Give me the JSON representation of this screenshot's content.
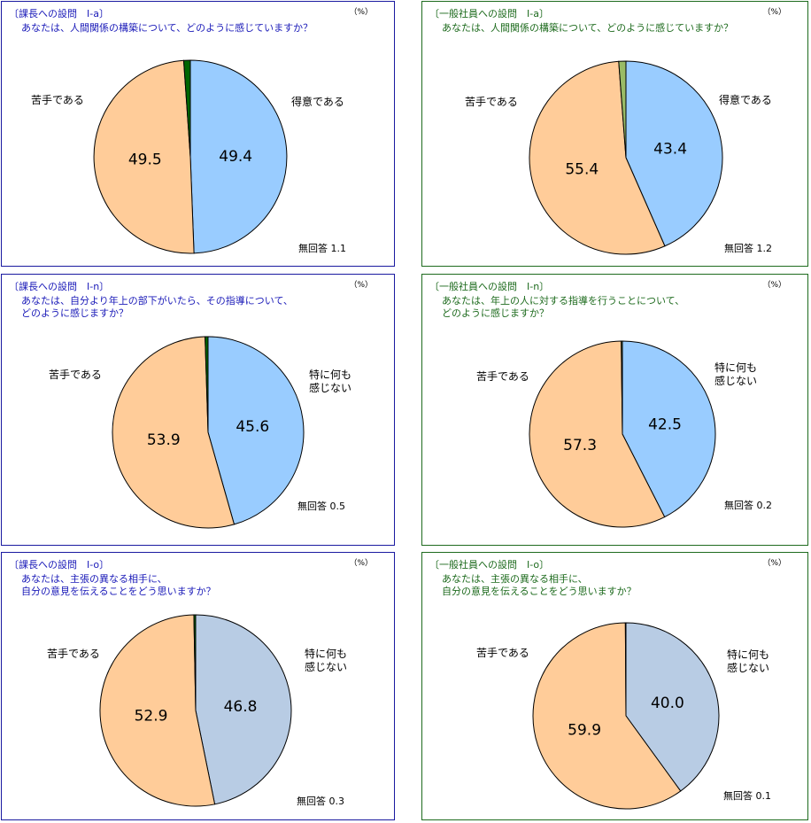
{
  "chart_data": [
    {
      "type": "pie",
      "title": "〔課長への設問　Ⅰ-a〕",
      "unit": "（%）",
      "question": [
        "あなたは、人間関係の構築について、どのように感じていますか？"
      ],
      "series": [
        {
          "name": "得意である",
          "value": 49.4,
          "color": "#99ccff"
        },
        {
          "name": "苦手である",
          "value": 49.5,
          "color": "#ffcc99"
        },
        {
          "name": "無回答",
          "value": 1.1,
          "color": "#006600"
        }
      ],
      "labels": {
        "first": [
          "得意である"
        ],
        "second": [
          "苦手である"
        ],
        "noanswer": "無回答 1.1"
      },
      "value_labels": [
        "49.4",
        "49.5"
      ]
    },
    {
      "type": "pie",
      "title": "〔一般社員への設問　Ⅰ-a〕",
      "unit": "（%）",
      "question": [
        "あなたは、人間関係の構築について、どのように感じていますか？"
      ],
      "series": [
        {
          "name": "得意である",
          "value": 43.4,
          "color": "#99ccff"
        },
        {
          "name": "苦手である",
          "value": 55.4,
          "color": "#ffcc99"
        },
        {
          "name": "無回答",
          "value": 1.2,
          "color": "#99bb66"
        }
      ],
      "labels": {
        "first": [
          "得意である"
        ],
        "second": [
          "苦手である"
        ],
        "noanswer": "無回答 1.2"
      },
      "value_labels": [
        "43.4",
        "55.4"
      ]
    },
    {
      "type": "pie",
      "title": "〔課長への設問　Ⅰ-n〕",
      "unit": "（%）",
      "question": [
        "あなたは、自分より年上の部下がいたら、その指導について、",
        "どのように感じますか？"
      ],
      "series": [
        {
          "name": "特に何も感じない",
          "value": 45.6,
          "color": "#99ccff"
        },
        {
          "name": "苦手である",
          "value": 53.9,
          "color": "#ffcc99"
        },
        {
          "name": "無回答",
          "value": 0.5,
          "color": "#006600"
        }
      ],
      "labels": {
        "first": [
          "特に何も",
          "感じない"
        ],
        "second": [
          "苦手である"
        ],
        "noanswer": "無回答 0.5"
      },
      "value_labels": [
        "45.6",
        "53.9"
      ]
    },
    {
      "type": "pie",
      "title": "〔一般社員への設問　Ⅰ-n〕",
      "unit": "（%）",
      "question": [
        "あなたは、年上の人に対する指導を行うことについて、",
        "どのように感じますか？"
      ],
      "series": [
        {
          "name": "特に何も感じない",
          "value": 42.5,
          "color": "#99ccff"
        },
        {
          "name": "苦手である",
          "value": 57.3,
          "color": "#ffcc99"
        },
        {
          "name": "無回答",
          "value": 0.2,
          "color": "#99bb66"
        }
      ],
      "labels": {
        "first": [
          "特に何も",
          "感じない"
        ],
        "second": [
          "苦手である"
        ],
        "noanswer": "無回答 0.2"
      },
      "value_labels": [
        "42.5",
        "57.3"
      ]
    },
    {
      "type": "pie",
      "title": "〔課長への設問　Ⅰ-o〕",
      "unit": "（%）",
      "question": [
        "あなたは、主張の異なる相手に、",
        "自分の意見を伝えることをどう思いますか？"
      ],
      "series": [
        {
          "name": "特に何も感じない",
          "value": 46.8,
          "color": "#b8cce4"
        },
        {
          "name": "苦手である",
          "value": 52.9,
          "color": "#ffcc99"
        },
        {
          "name": "無回答",
          "value": 0.3,
          "color": "#006600"
        }
      ],
      "labels": {
        "first": [
          "特に何も",
          "感じない"
        ],
        "second": [
          "苦手である"
        ],
        "noanswer": "無回答 0.3"
      },
      "value_labels": [
        "46.8",
        "52.9"
      ]
    },
    {
      "type": "pie",
      "title": "〔一般社員への設問　Ⅰ-o〕",
      "unit": "（%）",
      "question": [
        "あなたは、主張の異なる相手に、",
        "自分の意見を伝えることをどう思いますか？"
      ],
      "series": [
        {
          "name": "特に何も感じない",
          "value": 40.0,
          "color": "#b8cce4"
        },
        {
          "name": "苦手である",
          "value": 59.9,
          "color": "#ffcc99"
        },
        {
          "name": "無回答",
          "value": 0.1,
          "color": "#99bb66"
        }
      ],
      "labels": {
        "first": [
          "特に何も",
          "感じない"
        ],
        "second": [
          "苦手である"
        ],
        "noanswer": "無回答 0.1"
      },
      "value_labels": [
        "40.0",
        "59.9"
      ]
    }
  ]
}
